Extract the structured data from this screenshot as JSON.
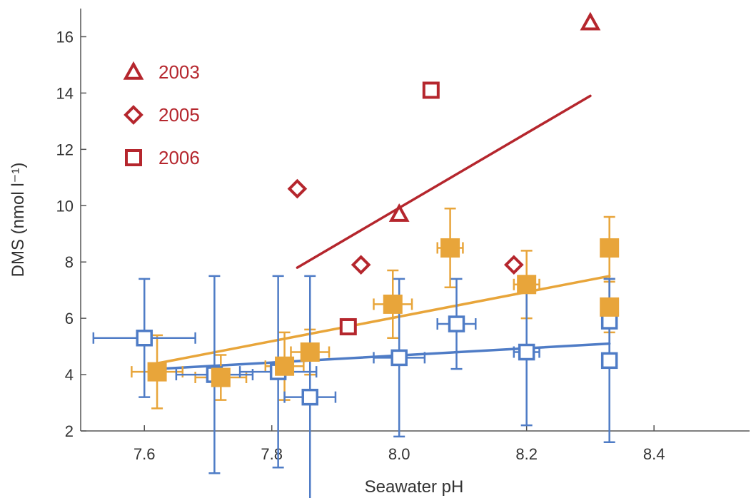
{
  "chart_data": {
    "type": "scatter",
    "xlabel": "Seawater pH",
    "ylabel": "DMS (nmol l⁻¹)",
    "xlim": [
      7.5,
      8.55
    ],
    "ylim": [
      2,
      17
    ],
    "xticks": [
      "7.6",
      "7.8",
      "8.0",
      "8.2",
      "8.4"
    ],
    "yticks": [
      "2",
      "4",
      "6",
      "8",
      "10",
      "12",
      "14",
      "16"
    ],
    "xtick_values": [
      7.6,
      7.8,
      8.0,
      8.2,
      8.4
    ],
    "ytick_values": [
      2,
      4,
      6,
      8,
      10,
      12,
      14,
      16
    ],
    "grid": false,
    "legend_position": "top-left",
    "legend": [
      {
        "label": "2003",
        "marker": "triangle"
      },
      {
        "label": "2005",
        "marker": "diamond"
      },
      {
        "label": "2006",
        "marker": "square"
      }
    ],
    "series": [
      {
        "marker": "triangle",
        "group": "red",
        "color": "#b5262d",
        "points": [
          {
            "x": 8.0,
            "y": 9.7
          },
          {
            "x": 8.3,
            "y": 16.5
          }
        ]
      },
      {
        "marker": "diamond",
        "group": "red",
        "color": "#b5262d",
        "points": [
          {
            "x": 7.84,
            "y": 10.6
          },
          {
            "x": 7.94,
            "y": 7.9
          },
          {
            "x": 8.18,
            "y": 7.9
          }
        ]
      },
      {
        "marker": "square",
        "group": "red",
        "color": "#b5262d",
        "points": [
          {
            "x": 7.92,
            "y": 5.7
          },
          {
            "x": 8.05,
            "y": 14.1
          }
        ]
      },
      {
        "marker": "filled-square",
        "group": "orange",
        "color": "#e8a53a",
        "points": [
          {
            "x": 7.62,
            "y": 4.1,
            "xerr": 0.04,
            "yerr": 1.3
          },
          {
            "x": 7.72,
            "y": 3.9,
            "xerr": 0.04,
            "yerr": 0.8
          },
          {
            "x": 7.82,
            "y": 4.3,
            "xerr": 0.03,
            "yerr": 1.2
          },
          {
            "x": 7.86,
            "y": 4.8,
            "xerr": 0.03,
            "yerr": 0.8
          },
          {
            "x": 7.99,
            "y": 6.5,
            "xerr": 0.03,
            "yerr": 1.2
          },
          {
            "x": 8.08,
            "y": 8.5,
            "xerr": 0.02,
            "yerr": 1.4
          },
          {
            "x": 8.2,
            "y": 7.2,
            "xerr": 0.02,
            "yerr": 1.2
          },
          {
            "x": 8.33,
            "y": 8.5,
            "xerr": 0.01,
            "yerr": 1.1
          },
          {
            "x": 8.33,
            "y": 6.4,
            "xerr": 0.01,
            "yerr": 0.9
          }
        ]
      },
      {
        "marker": "open-square",
        "group": "blue",
        "color": "#4f7cc6",
        "points": [
          {
            "x": 7.6,
            "y": 5.3,
            "xerr": 0.08,
            "yerr": 2.1
          },
          {
            "x": 7.71,
            "y": 4.0,
            "xerr": 0.06,
            "yerr": 3.5
          },
          {
            "x": 7.81,
            "y": 4.1,
            "xerr": 0.06,
            "yerr": 3.4
          },
          {
            "x": 7.86,
            "y": 3.2,
            "xerr": 0.04,
            "yerr": 4.3
          },
          {
            "x": 8.0,
            "y": 4.6,
            "xerr": 0.04,
            "yerr": 2.8
          },
          {
            "x": 8.09,
            "y": 5.8,
            "xerr": 0.03,
            "yerr": 1.6
          },
          {
            "x": 8.2,
            "y": 4.8,
            "xerr": 0.02,
            "yerr": 2.6
          },
          {
            "x": 8.33,
            "y": 5.9,
            "xerr": 0.01,
            "yerr": 1.5
          },
          {
            "x": 8.33,
            "y": 4.5,
            "xerr": 0.01,
            "yerr": 2.9
          }
        ]
      }
    ],
    "trendlines": [
      {
        "group": "red",
        "color": "#b5262d",
        "from": [
          7.84,
          7.8
        ],
        "to": [
          8.3,
          13.9
        ]
      },
      {
        "group": "orange",
        "color": "#e8a53a",
        "from": [
          7.62,
          4.4
        ],
        "to": [
          8.33,
          7.5
        ]
      },
      {
        "group": "blue",
        "color": "#4f7cc6",
        "from": [
          7.62,
          4.2
        ],
        "to": [
          8.33,
          5.1
        ]
      }
    ]
  }
}
